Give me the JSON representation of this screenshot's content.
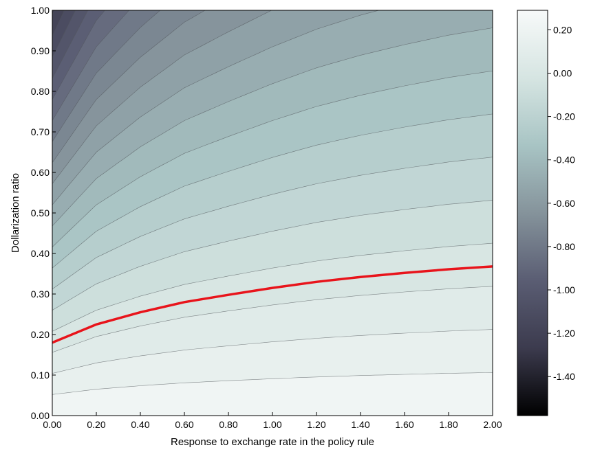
{
  "chart_data": {
    "type": "contour",
    "xlabel": "Response to exchange rate in the policy rule",
    "ylabel": "Dollarization ratio",
    "xlim": [
      0,
      2
    ],
    "ylim": [
      0,
      1
    ],
    "x_ticks": [
      "0.00",
      "0.20",
      "0.40",
      "0.60",
      "0.80",
      "1.00",
      "1.20",
      "1.40",
      "1.60",
      "1.80",
      "2.00"
    ],
    "y_ticks": [
      "0.00",
      "0.10",
      "0.20",
      "0.30",
      "0.40",
      "0.50",
      "0.60",
      "0.70",
      "0.80",
      "0.90",
      "1.00"
    ],
    "colorbar": {
      "range": [
        -1.58,
        0.29
      ],
      "ticks": [
        "0.20",
        "0.00",
        "-0.20",
        "-0.40",
        "-0.60",
        "-0.80",
        "-1.00",
        "-1.20",
        "-1.40"
      ],
      "tick_values": [
        0.2,
        0.0,
        -0.2,
        -0.4,
        -0.6,
        -0.8,
        -1.0,
        -1.2,
        -1.4
      ],
      "colormap": [
        "#000000",
        "#3c3b4e",
        "#5a5d73",
        "#85939b",
        "#a8c4c4",
        "#d6e5e2",
        "#f7f9f9"
      ]
    },
    "zero_contour": {
      "color": "#e8141b",
      "x": [
        0.0,
        0.2,
        0.4,
        0.6,
        0.8,
        1.0,
        1.2,
        1.4,
        1.6,
        1.8,
        2.0
      ],
      "y": [
        0.18,
        0.225,
        0.255,
        0.28,
        0.298,
        0.315,
        0.33,
        0.342,
        0.352,
        0.361,
        0.368
      ]
    }
  }
}
